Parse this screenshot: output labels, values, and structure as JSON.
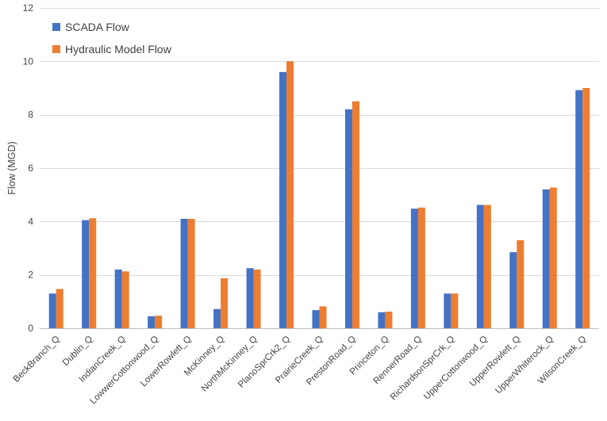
{
  "chart_data": {
    "type": "bar",
    "title": "",
    "xlabel": "",
    "ylabel": "Flow (MGD)",
    "ylim": [
      0,
      12
    ],
    "yticks": [
      "0",
      "2",
      "4",
      "6",
      "8",
      "10",
      "12"
    ],
    "grid": true,
    "legend_position": "top-left",
    "categories": [
      "BeckBranch_Q",
      "Dublin_Q",
      "IndianCreek_Q",
      "LowwerCottonwood_Q",
      "LowerRowlett_Q",
      "McKinney_Q",
      "NorthMcKinney_Q",
      "PlanoSprCrk2_Q",
      "PrairieCreek_Q",
      "PrestonRoad_Q",
      "Princeton_Q",
      "RennerRoad_Q",
      "RichardsonSprCrk_Q",
      "UpperCottonwood_Q",
      "UpperRowlett_Q",
      "UpperWhiterock_Q",
      "WilsonCreek_Q"
    ],
    "series": [
      {
        "name": "SCADA Flow",
        "color": "#4472C4",
        "values": [
          1.3,
          4.05,
          2.2,
          0.45,
          4.1,
          0.72,
          2.25,
          9.6,
          0.68,
          8.2,
          0.6,
          4.48,
          1.3,
          4.62,
          2.85,
          5.2,
          8.92
        ]
      },
      {
        "name": "Hydraulic Model Flow",
        "color": "#ED7D31",
        "values": [
          1.47,
          4.12,
          2.13,
          0.47,
          4.1,
          1.87,
          2.2,
          10.0,
          0.82,
          8.5,
          0.62,
          4.52,
          1.3,
          4.62,
          3.3,
          5.27,
          9.0
        ]
      }
    ]
  }
}
